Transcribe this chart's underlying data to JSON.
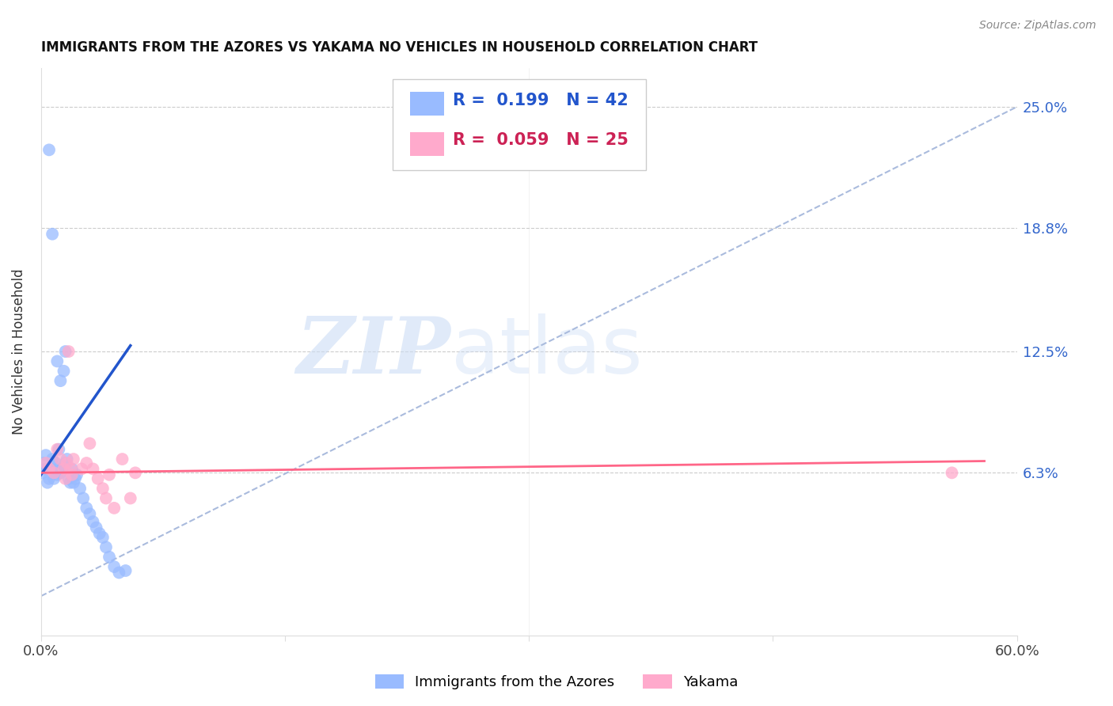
{
  "title": "IMMIGRANTS FROM THE AZORES VS YAKAMA NO VEHICLES IN HOUSEHOLD CORRELATION CHART",
  "source": "Source: ZipAtlas.com",
  "ylabel": "No Vehicles in Household",
  "ytick_labels": [
    "25.0%",
    "18.8%",
    "12.5%",
    "6.3%"
  ],
  "ytick_values": [
    25.0,
    18.8,
    12.5,
    6.3
  ],
  "xlim": [
    0.0,
    60.0
  ],
  "ylim": [
    -2.0,
    27.0
  ],
  "blue_R": "0.199",
  "blue_N": "42",
  "pink_R": "0.059",
  "pink_N": "25",
  "legend_label1": "Immigrants from the Azores",
  "legend_label2": "Yakama",
  "watermark_zip": "ZIP",
  "watermark_atlas": "atlas",
  "blue_color": "#99bbff",
  "pink_color": "#ffaacc",
  "blue_line_color": "#2255cc",
  "pink_line_color": "#ff6688",
  "diag_line_color": "#aabbdd",
  "blue_scatter_x": [
    0.1,
    0.2,
    0.3,
    0.3,
    0.4,
    0.5,
    0.5,
    0.6,
    0.7,
    0.7,
    0.8,
    0.9,
    1.0,
    1.0,
    1.1,
    1.1,
    1.2,
    1.2,
    1.3,
    1.4,
    1.5,
    1.5,
    1.6,
    1.7,
    1.8,
    1.9,
    2.0,
    2.1,
    2.2,
    2.4,
    2.6,
    2.8,
    3.0,
    3.2,
    3.4,
    3.6,
    3.8,
    4.0,
    4.2,
    4.5,
    4.8,
    5.2
  ],
  "blue_scatter_y": [
    6.3,
    6.8,
    6.5,
    7.2,
    5.8,
    6.0,
    22.8,
    6.5,
    7.0,
    18.5,
    6.0,
    6.8,
    12.0,
    6.2,
    7.5,
    6.5,
    6.3,
    11.0,
    6.5,
    11.5,
    12.5,
    6.8,
    7.0,
    6.0,
    5.8,
    6.5,
    5.8,
    6.0,
    6.2,
    5.5,
    5.0,
    4.5,
    4.2,
    3.8,
    3.5,
    3.2,
    3.0,
    2.5,
    2.0,
    1.5,
    1.2,
    1.3
  ],
  "pink_scatter_x": [
    0.3,
    0.5,
    0.8,
    1.0,
    1.2,
    1.4,
    1.5,
    1.6,
    1.7,
    1.8,
    1.9,
    2.0,
    2.5,
    2.8,
    3.0,
    3.2,
    3.5,
    3.8,
    4.0,
    4.2,
    4.5,
    5.0,
    5.5,
    5.8,
    56.0
  ],
  "pink_scatter_y": [
    6.8,
    6.5,
    6.3,
    7.5,
    7.0,
    6.5,
    6.0,
    6.8,
    12.5,
    6.5,
    6.2,
    7.0,
    6.5,
    6.8,
    7.8,
    6.5,
    6.0,
    5.5,
    5.0,
    6.2,
    4.5,
    7.0,
    5.0,
    6.3,
    6.3
  ],
  "blue_line_x": [
    0.0,
    5.5
  ],
  "blue_line_y": [
    6.2,
    12.8
  ],
  "pink_line_x": [
    0.0,
    58.0
  ],
  "pink_line_y": [
    6.3,
    6.9
  ],
  "diag_line_x": [
    0.0,
    60.0
  ],
  "diag_line_y": [
    0.0,
    25.0
  ]
}
